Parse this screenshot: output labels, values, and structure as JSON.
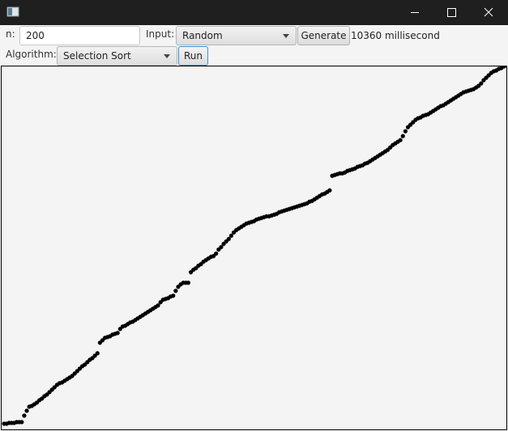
{
  "toolbar": {
    "n_label": "n:",
    "n_value": "200",
    "input_label": "Input:",
    "input_value": "Random",
    "generate": "Generate",
    "time": "10360 millisecond",
    "algorithm_label": "Algorithm:",
    "algorithm_value": "Selection Sort",
    "run": "Run"
  },
  "chart_data": {
    "type": "scatter",
    "color": "#000000",
    "values": [
      7,
      7,
      8,
      8,
      8,
      9,
      9,
      9,
      17,
      23,
      28,
      29,
      31,
      33,
      36,
      38,
      41,
      43,
      46,
      49,
      52,
      55,
      57,
      58,
      60,
      62,
      64,
      66,
      69,
      72,
      75,
      78,
      80,
      83,
      86,
      88,
      91,
      94,
      107,
      110,
      113,
      114,
      115,
      117,
      118,
      119,
      124,
      127,
      128,
      130,
      132,
      133,
      135,
      137,
      139,
      141,
      143,
      145,
      147,
      149,
      151,
      153,
      157,
      160,
      161,
      162,
      164,
      165,
      171,
      176,
      179,
      181,
      181,
      181,
      194,
      197,
      199,
      202,
      204,
      207,
      209,
      211,
      213,
      214,
      217,
      222,
      225,
      229,
      232,
      235,
      239,
      243,
      246,
      248,
      250,
      252,
      254,
      255,
      256,
      257,
      259,
      260,
      261,
      262,
      263,
      263,
      264,
      265,
      266,
      268,
      269,
      270,
      271,
      272,
      273,
      274,
      275,
      276,
      277,
      278,
      279,
      281,
      282,
      284,
      286,
      288,
      290,
      291,
      293,
      295,
      313,
      314,
      315,
      316,
      316,
      317,
      319,
      320,
      321,
      322,
      324,
      325,
      326,
      328,
      329,
      331,
      333,
      335,
      337,
      339,
      341,
      343,
      345,
      348,
      351,
      353,
      355,
      357,
      362,
      368,
      373,
      376,
      379,
      382,
      384,
      385,
      387,
      388,
      389,
      391,
      393,
      395,
      397,
      399,
      400,
      402,
      404,
      406,
      408,
      410,
      412,
      414,
      416,
      417,
      418,
      419,
      420,
      422,
      424,
      427,
      431,
      434,
      437,
      440,
      442,
      443,
      445,
      446,
      448,
      449
    ]
  }
}
